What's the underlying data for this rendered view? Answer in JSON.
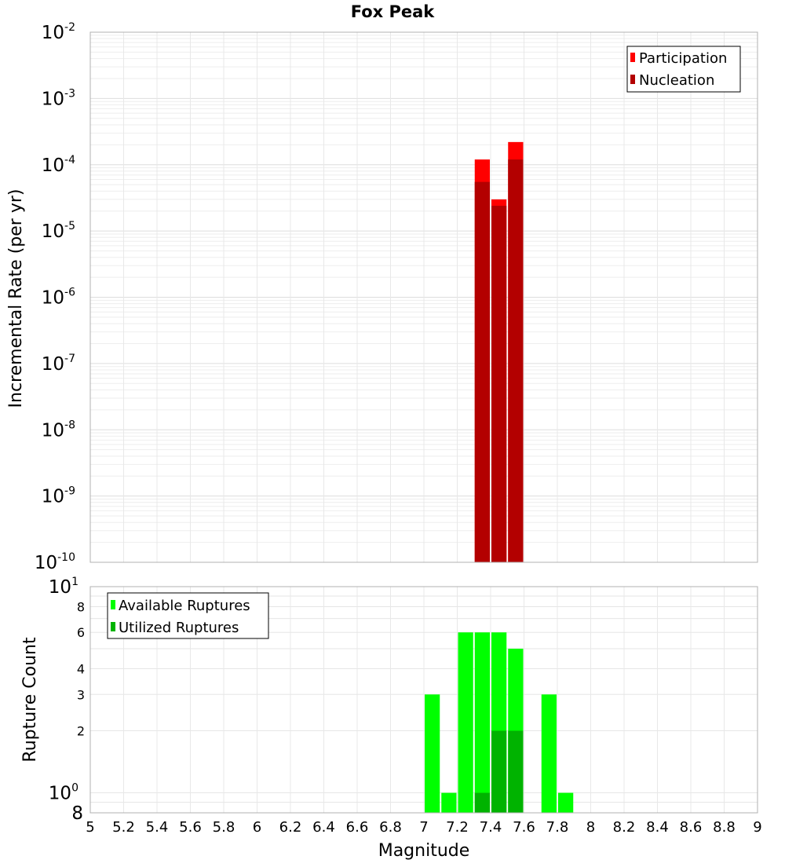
{
  "chart_data": [
    {
      "type": "bar",
      "title": "Fox Peak",
      "ylabel": "Incremental Rate (per yr)",
      "yscale": "log",
      "ylim": [
        1e-10,
        0.01
      ],
      "y_ticks": [
        "10-10",
        "10-9",
        "10-8",
        "10-7",
        "10-6",
        "10-5",
        "10-4",
        "10-3",
        "10-2"
      ],
      "xlim": [
        5,
        9
      ],
      "grid": true,
      "legend_position": "top-right",
      "legend": [
        "Participation",
        "Nucleation"
      ],
      "colors": {
        "Participation": "#ff0000",
        "Nucleation": "#b30000"
      },
      "series": [
        {
          "name": "Participation",
          "x": [
            7.35,
            7.45,
            7.55
          ],
          "values": [
            0.00012,
            3e-05,
            0.00022
          ]
        },
        {
          "name": "Nucleation",
          "x": [
            7.35,
            7.45,
            7.55
          ],
          "values": [
            5.5e-05,
            2.4e-05,
            0.00012
          ]
        }
      ]
    },
    {
      "type": "bar",
      "ylabel": "Rupture Count",
      "xlabel": "Magnitude",
      "yscale": "log",
      "ylim": [
        0.8,
        10
      ],
      "y_ticks": [
        "8",
        "10 0",
        "2",
        "3",
        "4",
        "6",
        "8",
        "10 1"
      ],
      "xlim": [
        5,
        9
      ],
      "x_ticks": [
        "5",
        "5.2",
        "5.4",
        "5.6",
        "5.8",
        "6",
        "6.2",
        "6.4",
        "6.6",
        "6.8",
        "7",
        "7.2",
        "7.4",
        "7.6",
        "7.8",
        "8",
        "8.2",
        "8.4",
        "8.6",
        "8.8",
        "9"
      ],
      "grid": true,
      "legend_position": "top-left",
      "legend": [
        "Available Ruptures",
        "Utilized Ruptures"
      ],
      "colors": {
        "Available Ruptures": "#00ff00",
        "Utilized Ruptures": "#00b300"
      },
      "series": [
        {
          "name": "Available Ruptures",
          "x": [
            7.05,
            7.15,
            7.25,
            7.35,
            7.45,
            7.55,
            7.75,
            7.85
          ],
          "values": [
            3,
            1,
            6,
            6,
            6,
            5,
            3,
            1
          ]
        },
        {
          "name": "Utilized Ruptures",
          "x": [
            7.35,
            7.45,
            7.55
          ],
          "values": [
            1,
            2,
            2
          ]
        }
      ]
    }
  ]
}
